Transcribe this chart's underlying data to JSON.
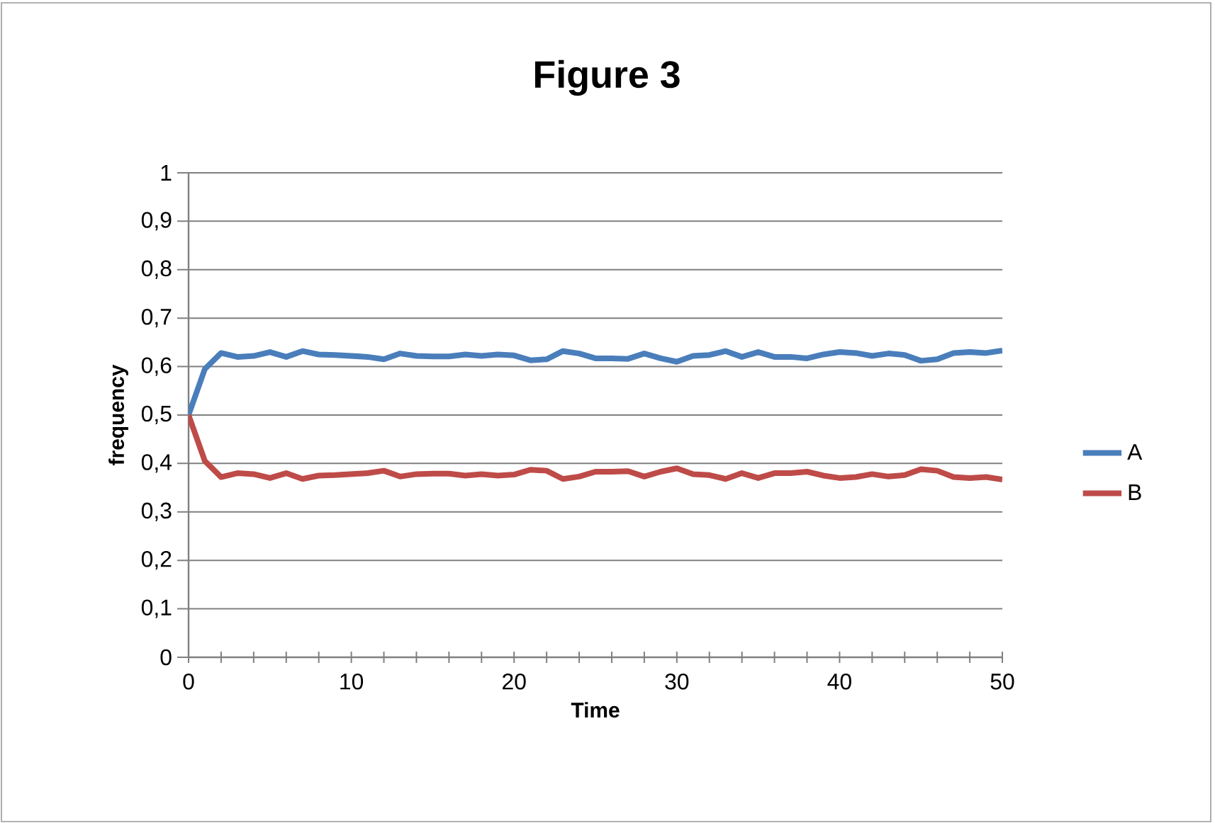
{
  "chart_data": {
    "type": "line",
    "title": "Figure 3",
    "xlabel": "Time",
    "ylabel": "frequency",
    "x": [
      0,
      1,
      2,
      3,
      4,
      5,
      6,
      7,
      8,
      9,
      10,
      11,
      12,
      13,
      14,
      15,
      16,
      17,
      18,
      19,
      20,
      21,
      22,
      23,
      24,
      25,
      26,
      27,
      28,
      29,
      30,
      31,
      32,
      33,
      34,
      35,
      36,
      37,
      38,
      39,
      40,
      41,
      42,
      43,
      44,
      45,
      46,
      47,
      48,
      49,
      50
    ],
    "series": [
      {
        "name": "A",
        "color": "#4a7ebb",
        "values": [
          0.5,
          0.595,
          0.628,
          0.62,
          0.622,
          0.63,
          0.62,
          0.632,
          0.625,
          0.624,
          0.622,
          0.62,
          0.615,
          0.627,
          0.622,
          0.621,
          0.621,
          0.625,
          0.622,
          0.625,
          0.623,
          0.613,
          0.615,
          0.632,
          0.627,
          0.617,
          0.617,
          0.616,
          0.627,
          0.617,
          0.61,
          0.622,
          0.624,
          0.632,
          0.62,
          0.63,
          0.62,
          0.62,
          0.617,
          0.625,
          0.63,
          0.628,
          0.622,
          0.627,
          0.624,
          0.612,
          0.615,
          0.628,
          0.63,
          0.628,
          0.633
        ]
      },
      {
        "name": "B",
        "color": "#be4b48",
        "values": [
          0.5,
          0.405,
          0.372,
          0.38,
          0.378,
          0.37,
          0.38,
          0.368,
          0.375,
          0.376,
          0.378,
          0.38,
          0.385,
          0.373,
          0.378,
          0.379,
          0.379,
          0.375,
          0.378,
          0.375,
          0.377,
          0.387,
          0.385,
          0.368,
          0.373,
          0.383,
          0.383,
          0.384,
          0.373,
          0.383,
          0.39,
          0.378,
          0.376,
          0.368,
          0.38,
          0.37,
          0.38,
          0.38,
          0.383,
          0.375,
          0.37,
          0.372,
          0.378,
          0.373,
          0.376,
          0.388,
          0.385,
          0.372,
          0.37,
          0.372,
          0.367
        ]
      }
    ],
    "xlim": [
      0,
      50
    ],
    "xticks": [
      0,
      {
        "value": 2,
        "label": null
      },
      {
        "value": 4,
        "label": null
      },
      {
        "value": 6,
        "label": null
      },
      {
        "value": 8,
        "label": null
      },
      10,
      {
        "value": 12,
        "label": null
      },
      {
        "value": 14,
        "label": null
      },
      {
        "value": 16,
        "label": null
      },
      {
        "value": 18,
        "label": null
      },
      20,
      {
        "value": 22,
        "label": null
      },
      {
        "value": 24,
        "label": null
      },
      {
        "value": 26,
        "label": null
      },
      {
        "value": 28,
        "label": null
      },
      30,
      {
        "value": 32,
        "label": null
      },
      {
        "value": 34,
        "label": null
      },
      {
        "value": 36,
        "label": null
      },
      {
        "value": 38,
        "label": null
      },
      40,
      {
        "value": 42,
        "label": null
      },
      {
        "value": 44,
        "label": null
      },
      {
        "value": 46,
        "label": null
      },
      {
        "value": 48,
        "label": null
      },
      50
    ],
    "ylim": [
      0,
      1
    ],
    "yticks": [
      0,
      {
        "value": 0.1,
        "label": "0,1"
      },
      {
        "value": 0.2,
        "label": "0,2"
      },
      {
        "value": 0.3,
        "label": "0,3"
      },
      {
        "value": 0.4,
        "label": "0,4"
      },
      {
        "value": 0.5,
        "label": "0,5"
      },
      {
        "value": 0.6,
        "label": "0,6"
      },
      {
        "value": 0.7,
        "label": "0,7"
      },
      {
        "value": 0.8,
        "label": "0,8"
      },
      {
        "value": 0.9,
        "label": "0,9"
      },
      1
    ],
    "grid": "y",
    "legend": "right",
    "marker": "none",
    "line_style": "solid"
  }
}
